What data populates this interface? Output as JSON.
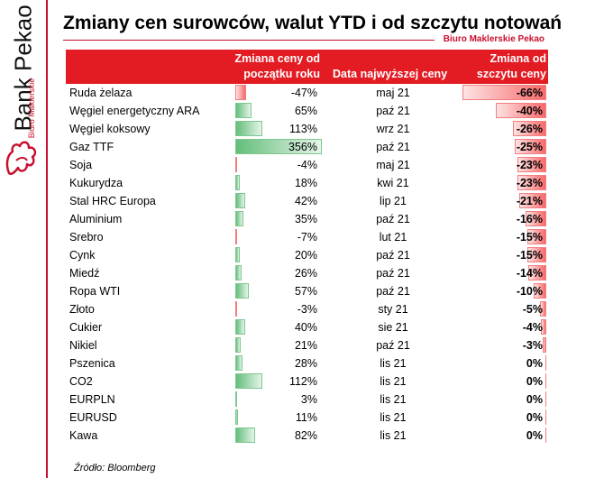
{
  "brand": {
    "name": "Bank Pekao",
    "sub": "Biuro Maklerskie",
    "subbrand": "Biuro Maklerskie Pekao"
  },
  "title": "Zmiany cen surowców, walut YTD i od szczytu notowań",
  "table": {
    "headers": {
      "ytd": "Zmiana ceny od początku roku",
      "date": "Data najwyższej ceny",
      "peak": "Zmiana od szczytu ceny"
    },
    "rows": [
      {
        "name": "Ruda żelaza",
        "ytd": "-47%",
        "ytd_value": -47,
        "date": "maj 21",
        "peak": "-66%",
        "peak_value": -66
      },
      {
        "name": "Węgiel energetyczny ARA",
        "ytd": "65%",
        "ytd_value": 65,
        "date": "paź 21",
        "peak": "-40%",
        "peak_value": -40
      },
      {
        "name": "Węgiel koksowy",
        "ytd": "113%",
        "ytd_value": 113,
        "date": "wrz 21",
        "peak": "-26%",
        "peak_value": -26
      },
      {
        "name": "Gaz TTF",
        "ytd": "356%",
        "ytd_value": 356,
        "date": "paź 21",
        "peak": "-25%",
        "peak_value": -25
      },
      {
        "name": "Soja",
        "ytd": "-4%",
        "ytd_value": -4,
        "date": "maj 21",
        "peak": "-23%",
        "peak_value": -23
      },
      {
        "name": "Kukurydza",
        "ytd": "18%",
        "ytd_value": 18,
        "date": "kwi 21",
        "peak": "-23%",
        "peak_value": -23
      },
      {
        "name": "Stal HRC Europa",
        "ytd": "42%",
        "ytd_value": 42,
        "date": "lip 21",
        "peak": "-21%",
        "peak_value": -21
      },
      {
        "name": "Aluminium",
        "ytd": "35%",
        "ytd_value": 35,
        "date": "paź 21",
        "peak": "-16%",
        "peak_value": -16
      },
      {
        "name": "Srebro",
        "ytd": "-7%",
        "ytd_value": -7,
        "date": "lut 21",
        "peak": "-15%",
        "peak_value": -15
      },
      {
        "name": "Cynk",
        "ytd": "20%",
        "ytd_value": 20,
        "date": "paź 21",
        "peak": "-15%",
        "peak_value": -15
      },
      {
        "name": "Miedź",
        "ytd": "26%",
        "ytd_value": 26,
        "date": "paź 21",
        "peak": "-14%",
        "peak_value": -14
      },
      {
        "name": "Ropa WTI",
        "ytd": "57%",
        "ytd_value": 57,
        "date": "paź 21",
        "peak": "-10%",
        "peak_value": -10
      },
      {
        "name": "Złoto",
        "ytd": "-3%",
        "ytd_value": -3,
        "date": "sty 21",
        "peak": "-5%",
        "peak_value": -5
      },
      {
        "name": "Cukier",
        "ytd": "40%",
        "ytd_value": 40,
        "date": "sie 21",
        "peak": "-4%",
        "peak_value": -4
      },
      {
        "name": "Nikiel",
        "ytd": "21%",
        "ytd_value": 21,
        "date": "paź 21",
        "peak": "-3%",
        "peak_value": -3
      },
      {
        "name": "Pszenica",
        "ytd": "28%",
        "ytd_value": 28,
        "date": "lis 21",
        "peak": "0%",
        "peak_value": 0
      },
      {
        "name": "CO2",
        "ytd": "112%",
        "ytd_value": 112,
        "date": "lis 21",
        "peak": "0%",
        "peak_value": 0
      },
      {
        "name": "EURPLN",
        "ytd": "3%",
        "ytd_value": 3,
        "date": "lis 21",
        "peak": "0%",
        "peak_value": 0
      },
      {
        "name": "EURUSD",
        "ytd": "11%",
        "ytd_value": 11,
        "date": "lis 21",
        "peak": "0%",
        "peak_value": 0
      },
      {
        "name": "Kawa",
        "ytd": "82%",
        "ytd_value": 82,
        "date": "lis 21",
        "peak": "0%",
        "peak_value": 0
      }
    ]
  },
  "colors": {
    "brand_red": "#c8102e",
    "header_red": "#e31b23",
    "positive_bar": "#63be7b",
    "negative_bar": "#f8696b"
  },
  "source": "Źródło: Bloomberg"
}
